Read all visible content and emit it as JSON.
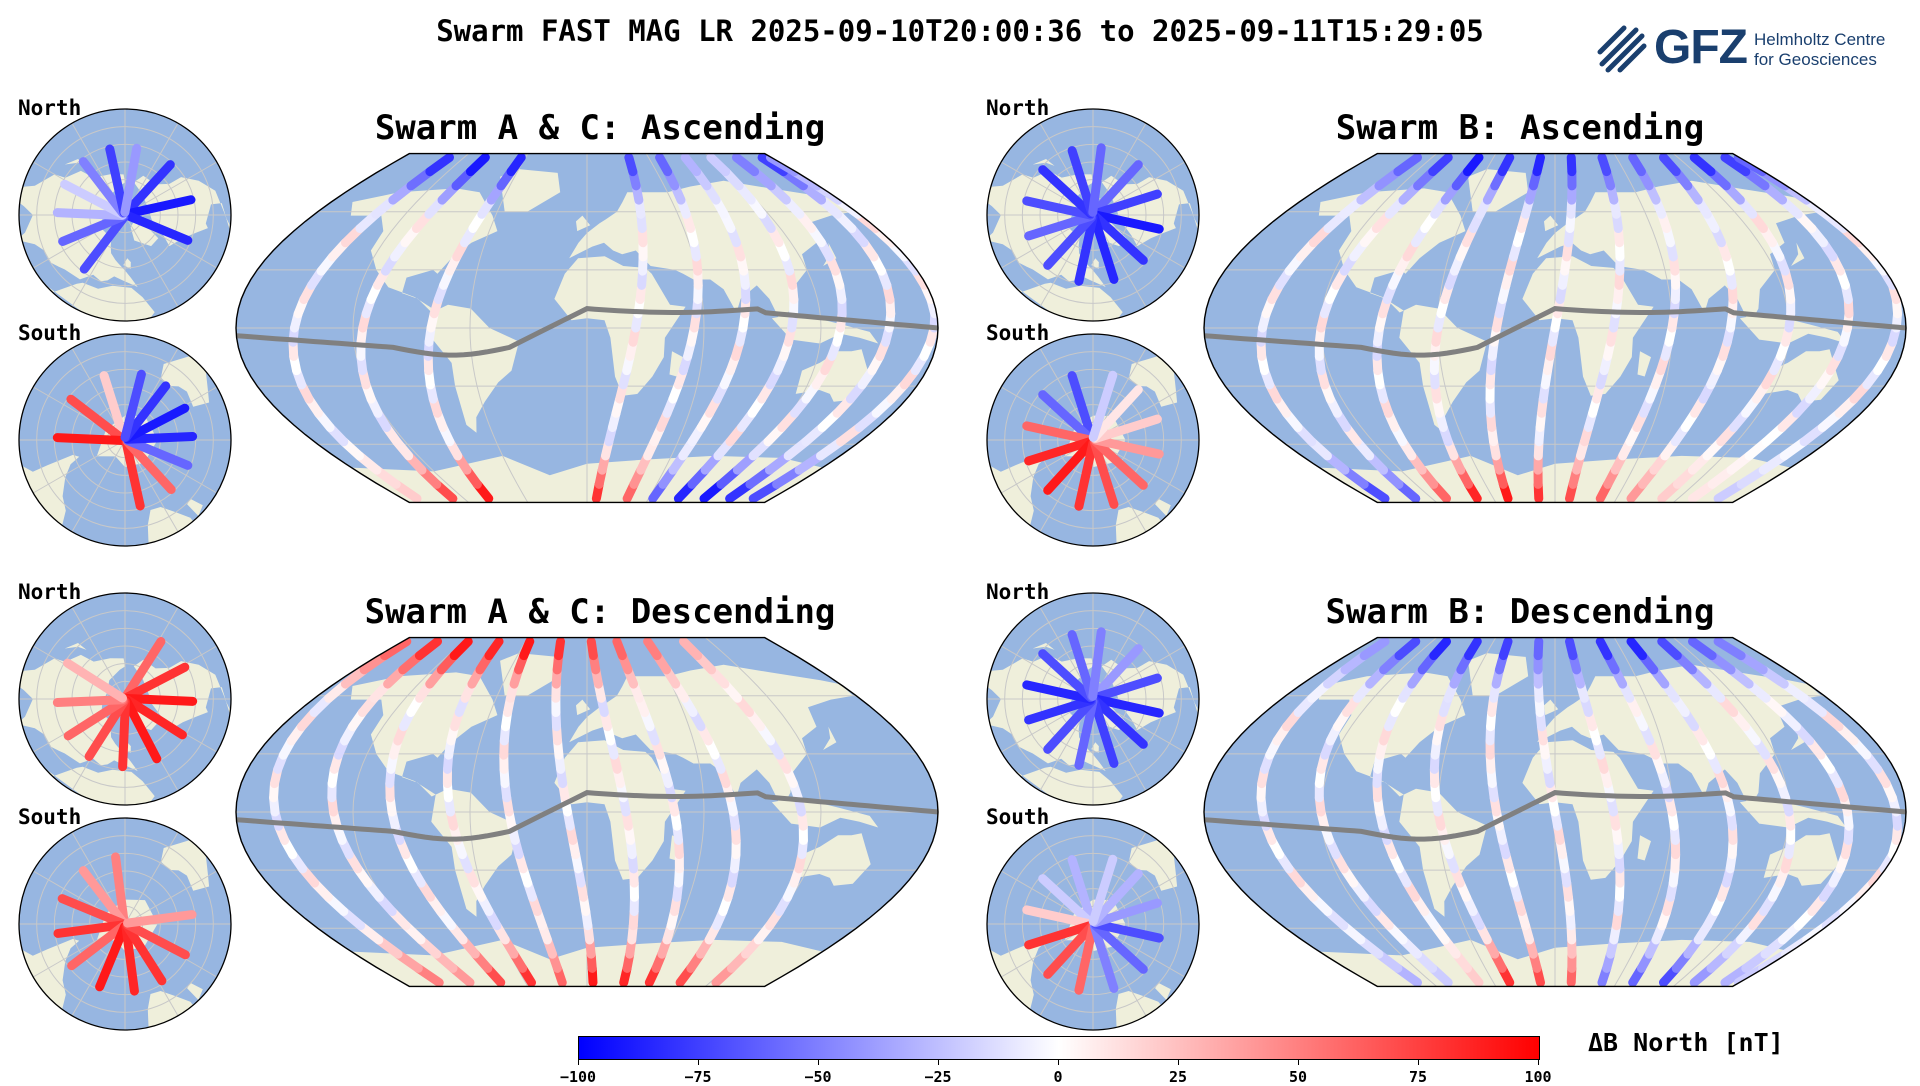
{
  "title": "Swarm FAST MAG LR 2025-09-10T20:00:36 to 2025-09-11T15:29:05",
  "logo": {
    "name": "GFZ",
    "line1": "Helmholtz Centre",
    "line2": "for Geosciences"
  },
  "hemisphere_labels": {
    "north": "North",
    "south": "South"
  },
  "panels": [
    {
      "title": "Swarm A & C: Ascending",
      "direction": "ascending",
      "track_longitudes": [
        -150,
        -115,
        -80,
        25,
        55,
        80,
        105,
        130,
        155,
        178
      ],
      "north_values": [
        -80,
        -90,
        -85,
        -70,
        -60,
        -30,
        -20,
        -50,
        -75,
        -40
      ],
      "south_values": [
        20,
        70,
        90,
        80,
        60,
        -60,
        -85,
        -90,
        -80,
        -70
      ]
    },
    {
      "title": "Swarm B: Ascending",
      "direction": "ascending",
      "track_longitudes": [
        -150,
        -120,
        -90,
        -60,
        -30,
        0,
        30,
        60,
        90,
        120,
        150,
        175
      ],
      "north_values": [
        -60,
        -75,
        -90,
        -80,
        -85,
        -80,
        -70,
        -60,
        -70,
        -80,
        -75,
        -60
      ],
      "south_values": [
        -70,
        -60,
        60,
        85,
        90,
        80,
        70,
        60,
        40,
        20,
        10,
        -20
      ]
    },
    {
      "title": "Swarm A & C: Descending",
      "direction": "descending",
      "track_longitudes": [
        -160,
        -130,
        -100,
        -70,
        -40,
        -10,
        20,
        45,
        75,
        110
      ],
      "north_values": [
        60,
        80,
        90,
        85,
        90,
        80,
        70,
        60,
        50,
        30
      ],
      "south_values": [
        50,
        40,
        70,
        80,
        60,
        90,
        85,
        80,
        70,
        40
      ]
    },
    {
      "title": "Swarm B: Descending",
      "direction": "descending",
      "track_longitudes": [
        -150,
        -120,
        -90,
        -60,
        -30,
        0,
        30,
        60,
        90,
        120,
        150,
        175
      ],
      "north_values": [
        -40,
        -70,
        -85,
        -80,
        -75,
        -60,
        -70,
        -80,
        -85,
        -70,
        -60,
        -50
      ],
      "south_values": [
        -30,
        -20,
        20,
        80,
        70,
        60,
        -50,
        -60,
        -70,
        -40,
        -30,
        -20
      ]
    }
  ],
  "colorbar": {
    "label": "ΔB North [nT]",
    "ticks": [
      "−100",
      "−75",
      "−50",
      "−25",
      "0",
      "25",
      "50",
      "75",
      "100"
    ],
    "range": [
      -100,
      100
    ],
    "colors": {
      "low": "#0000ff",
      "mid": "#ffffff",
      "high": "#ff0000"
    }
  },
  "colors": {
    "ocean": "#97b6e1",
    "land": "#efefdb",
    "dip_equator": "#808080",
    "grid": "#c8c8c8"
  }
}
